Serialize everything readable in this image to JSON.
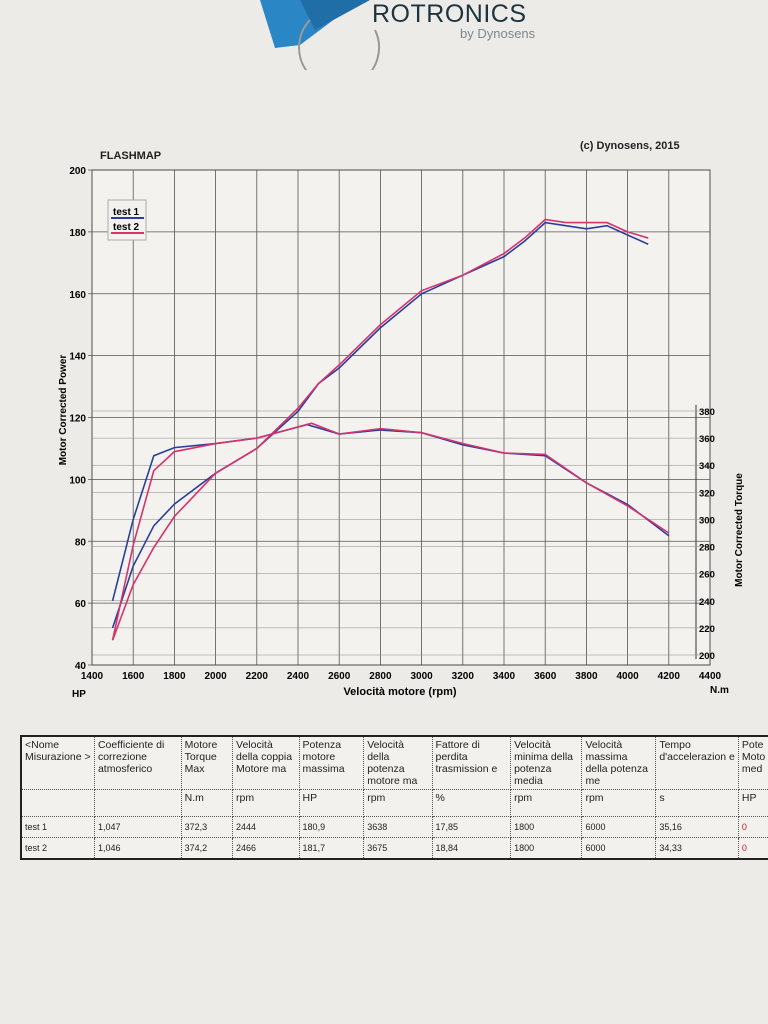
{
  "header": {
    "brand": "ROTRONICS",
    "brand_sub": "by Dynosens",
    "title": "FLASHMAP",
    "copyright": "(c) Dynosens, 2015"
  },
  "chart_data": {
    "type": "line",
    "title": "FLASHMAP",
    "xlabel": "Velocità motore (rpm)",
    "ylabel": "Motor Corrected Power",
    "y2label": "Motor Corrected Torque",
    "yunit": "HP",
    "y2unit": "N.m",
    "xlim": [
      1400,
      4400
    ],
    "ylim": [
      40,
      200
    ],
    "y2lim": [
      200,
      380
    ],
    "xticks": [
      1400,
      1600,
      1800,
      2000,
      2200,
      2400,
      2600,
      2800,
      3000,
      3200,
      3400,
      3600,
      3800,
      4000,
      4200,
      4400
    ],
    "yticks": [
      40,
      60,
      80,
      100,
      120,
      140,
      160,
      180,
      200
    ],
    "y2ticks": [
      200,
      220,
      240,
      260,
      280,
      300,
      320,
      340,
      360,
      380
    ],
    "grid": true,
    "legend": "top-left",
    "series": [
      {
        "name": "test 1",
        "color": "#2a3f9a",
        "axis": "power",
        "x": [
          1500,
          1600,
          1700,
          1800,
          2000,
          2200,
          2400,
          2500,
          2600,
          2800,
          3000,
          3200,
          3400,
          3500,
          3600,
          3700,
          3800,
          3900,
          4000,
          4100
        ],
        "y": [
          52,
          72,
          85,
          92,
          102,
          110,
          122,
          131,
          136,
          149,
          160,
          166,
          172,
          177,
          183,
          182,
          181,
          182,
          179,
          176
        ]
      },
      {
        "name": "test 2",
        "color": "#d6336e",
        "axis": "power",
        "x": [
          1500,
          1600,
          1700,
          1800,
          2000,
          2200,
          2400,
          2500,
          2600,
          2800,
          3000,
          3200,
          3400,
          3500,
          3600,
          3700,
          3800,
          3900,
          4000,
          4100
        ],
        "y": [
          48,
          66,
          78,
          88,
          102,
          110,
          123,
          131,
          137,
          150,
          161,
          166,
          173,
          178,
          184,
          183,
          183,
          183,
          180,
          178
        ]
      },
      {
        "name": "test 1",
        "color": "#2a3f9a",
        "axis": "torque",
        "x": [
          1500,
          1600,
          1700,
          1800,
          2000,
          2200,
          2444,
          2600,
          2800,
          3000,
          3200,
          3400,
          3600,
          3800,
          4000,
          4200
        ],
        "y": [
          240,
          300,
          347,
          353,
          356,
          360,
          370,
          363,
          366,
          364,
          355,
          349,
          347,
          327,
          311,
          288
        ]
      },
      {
        "name": "test 2",
        "color": "#d6336e",
        "axis": "torque",
        "x": [
          1500,
          1600,
          1700,
          1800,
          2000,
          2200,
          2466,
          2600,
          2800,
          3000,
          3200,
          3400,
          3600,
          3800,
          4000,
          4200
        ],
        "y": [
          211,
          281,
          336,
          350,
          356,
          360,
          371,
          363,
          367,
          364,
          356,
          349,
          348,
          327,
          310,
          290
        ]
      }
    ]
  },
  "table": {
    "headers": [
      "<Nome Misurazione >",
      "Coefficiente di correzione atmosferico",
      "Motore Torque Max",
      "Velocità della coppia Motore ma",
      "Potenza motore massima",
      "Velocità della potenza motore ma",
      "Fattore di perdita trasmission e",
      "Velocità minima della potenza media",
      "Velocità massima della potenza me",
      "Tempo d'accelerazion e",
      "Pote Moto med"
    ],
    "units": [
      "",
      "",
      "N.m",
      "rpm",
      "HP",
      "rpm",
      "%",
      "rpm",
      "rpm",
      "s",
      "HP"
    ],
    "rows": [
      [
        "test 1",
        "1,047",
        "372,3",
        "2444",
        "180,9",
        "3638",
        "17,85",
        "1800",
        "6000",
        "35,16",
        "0"
      ],
      [
        "test 2",
        "1,046",
        "374,2",
        "2466",
        "181,7",
        "3675",
        "18,84",
        "1800",
        "6000",
        "34,33",
        "0"
      ]
    ]
  }
}
